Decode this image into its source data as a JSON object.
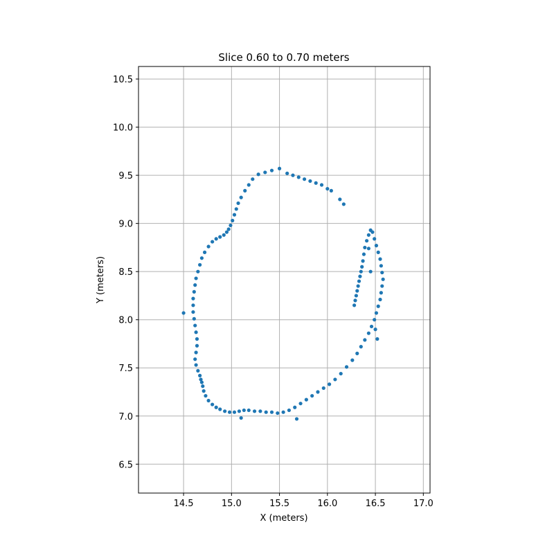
{
  "chart_data": {
    "type": "scatter",
    "title": "Slice 0.60 to 0.70 meters",
    "xlabel": "X (meters)",
    "ylabel": "Y (meters)",
    "xlim": [
      14.03,
      17.07
    ],
    "ylim": [
      6.2,
      10.63
    ],
    "xticks": [
      14.5,
      15.0,
      15.5,
      16.0,
      16.5,
      17.0
    ],
    "xtick_labels": [
      "14.5",
      "15.0",
      "15.5",
      "16.0",
      "16.5",
      "17.0"
    ],
    "yticks": [
      6.5,
      7.0,
      7.5,
      8.0,
      8.5,
      9.0,
      9.5,
      10.0,
      10.5
    ],
    "ytick_labels": [
      "6.5",
      "7.0",
      "7.5",
      "8.0",
      "8.5",
      "9.0",
      "9.5",
      "10.0",
      "10.5"
    ],
    "grid": true,
    "marker_color": "#1f77b4",
    "series": [
      {
        "x": [
          15.5,
          15.42,
          15.35,
          15.28,
          15.22,
          15.18,
          15.14,
          15.1,
          15.07,
          15.05,
          15.03,
          15.01,
          14.99,
          14.97,
          14.95,
          14.92,
          14.88,
          14.84,
          14.8,
          14.76,
          14.72,
          14.69,
          14.67,
          14.65,
          14.63,
          14.62,
          14.61,
          14.6,
          14.6,
          14.6,
          14.61,
          14.62,
          14.63,
          14.64,
          14.64,
          14.63,
          14.62,
          14.63,
          14.65,
          14.67,
          14.68,
          14.69,
          14.7,
          14.71,
          14.73,
          14.76,
          14.8,
          14.84,
          14.88,
          14.93,
          14.98,
          15.03,
          15.08,
          15.13,
          15.18,
          15.24,
          15.3,
          15.36,
          15.42,
          15.48,
          15.54,
          15.6,
          15.66,
          15.72,
          15.78,
          15.84,
          15.9,
          15.96,
          16.02,
          16.08,
          16.14,
          16.2,
          16.26,
          16.31,
          16.35,
          16.39,
          16.43,
          16.46,
          16.49,
          16.51,
          16.53,
          16.55,
          16.56,
          16.57,
          16.58,
          16.57,
          16.56,
          16.55,
          16.53,
          16.51,
          16.49,
          16.47,
          16.45,
          16.43,
          16.41,
          16.39,
          16.38,
          16.37,
          16.36,
          16.35,
          16.34,
          16.33,
          16.32,
          16.31,
          16.3,
          16.29,
          16.28,
          15.58,
          15.64,
          15.7,
          15.76,
          15.82,
          15.88,
          15.94,
          16.0,
          16.04,
          16.13,
          16.17,
          16.45,
          16.43,
          16.5,
          14.5,
          15.1,
          15.68,
          16.52
        ],
        "y": [
          9.57,
          9.55,
          9.53,
          9.51,
          9.46,
          9.4,
          9.34,
          9.27,
          9.21,
          9.15,
          9.09,
          9.03,
          8.98,
          8.94,
          8.91,
          8.88,
          8.86,
          8.84,
          8.81,
          8.76,
          8.7,
          8.64,
          8.57,
          8.5,
          8.43,
          8.36,
          8.29,
          8.22,
          8.15,
          8.08,
          8.01,
          7.94,
          7.87,
          7.8,
          7.73,
          7.66,
          7.59,
          7.53,
          7.47,
          7.42,
          7.38,
          7.35,
          7.31,
          7.26,
          7.21,
          7.16,
          7.12,
          7.09,
          7.07,
          7.05,
          7.04,
          7.04,
          7.05,
          7.06,
          7.06,
          7.05,
          7.05,
          7.04,
          7.04,
          7.03,
          7.04,
          7.06,
          7.09,
          7.13,
          7.17,
          7.21,
          7.25,
          7.29,
          7.33,
          7.38,
          7.44,
          7.51,
          7.58,
          7.65,
          7.72,
          7.79,
          7.86,
          7.93,
          8.0,
          8.07,
          8.14,
          8.21,
          8.28,
          8.35,
          8.42,
          8.49,
          8.56,
          8.63,
          8.7,
          8.77,
          8.84,
          8.91,
          8.93,
          8.88,
          8.82,
          8.75,
          8.68,
          8.61,
          8.55,
          8.5,
          8.45,
          8.4,
          8.35,
          8.3,
          8.25,
          8.2,
          8.15,
          9.52,
          9.5,
          9.48,
          9.46,
          9.44,
          9.42,
          9.4,
          9.36,
          9.34,
          9.25,
          9.2,
          8.5,
          8.74,
          7.9,
          8.07,
          6.98,
          6.97,
          7.8
        ]
      }
    ]
  }
}
